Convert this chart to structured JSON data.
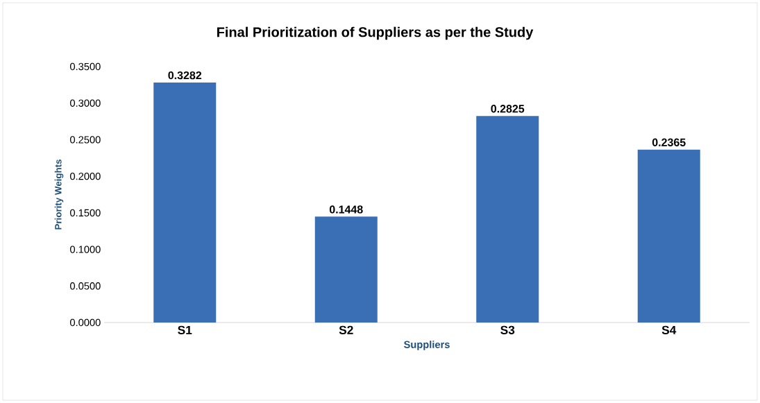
{
  "chart_data": {
    "type": "bar",
    "title": "Final Prioritization of Suppliers as per the Study",
    "xlabel": "Suppliers",
    "ylabel": "Priority  Weights",
    "categories": [
      "S1",
      "S2",
      "S3",
      "S4"
    ],
    "values": [
      0.3282,
      0.1448,
      0.2825,
      0.2365
    ],
    "color": "#3a6eb5",
    "ylim": [
      0,
      0.35
    ],
    "yticks": [
      {
        "value": 0,
        "label": "0.0000"
      },
      {
        "value": 0.05,
        "label": "0.0500"
      },
      {
        "value": 0.1,
        "label": "0.1000"
      },
      {
        "value": 0.15,
        "label": "0.1500"
      },
      {
        "value": 0.2,
        "label": "0.2000"
      },
      {
        "value": 0.25,
        "label": "0.2500"
      },
      {
        "value": 0.3,
        "label": "0.3000"
      },
      {
        "value": 0.35,
        "label": "0.3500"
      }
    ],
    "data_labels": true
  }
}
